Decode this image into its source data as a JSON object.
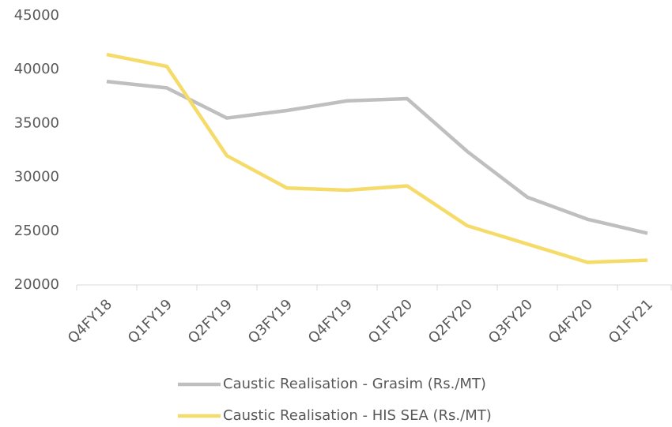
{
  "chart_data": {
    "type": "line",
    "categories": [
      "Q4FY18",
      "Q1FY19",
      "Q2FY19",
      "Q3FY19",
      "Q4FY19",
      "Q1FY20",
      "Q2FY20",
      "Q3FY20",
      "Q4FY20",
      "Q1FY21"
    ],
    "series": [
      {
        "name": "Caustic Realisation - Grasim (Rs./MT)",
        "color": "#bfbfbf",
        "values": [
          38900,
          38300,
          35500,
          36200,
          37100,
          37300,
          32400,
          28150,
          26100,
          24800
        ]
      },
      {
        "name": "Caustic Realisation - HIS SEA (Rs./MT)",
        "color": "#f5dc6a",
        "values": [
          41400,
          40300,
          32000,
          29000,
          28800,
          29200,
          25500,
          23800,
          22100,
          22300
        ]
      }
    ],
    "ylim": [
      20000,
      45000
    ],
    "yticks": [
      20000,
      25000,
      30000,
      35000,
      40000,
      45000
    ],
    "grid": false
  }
}
